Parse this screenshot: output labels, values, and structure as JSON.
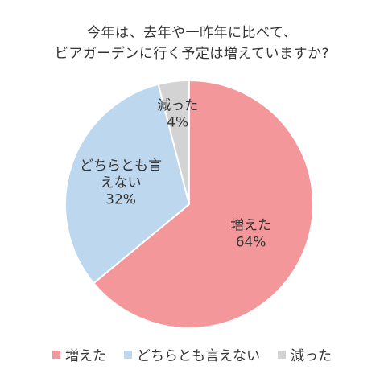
{
  "chart_data": {
    "type": "pie",
    "title": [
      "今年は、去年や一昨年に比べて、",
      "ビアガーデンに行く予定は増えていますか?"
    ],
    "categories": [
      "増えた",
      "どちらとも言えない",
      "減った"
    ],
    "values": [
      64,
      32,
      4
    ],
    "value_labels": [
      "64%",
      "32%",
      "4%"
    ],
    "slice_label_lines": [
      [
        "増えた",
        "64%"
      ],
      [
        "どちらとも言",
        "えない",
        "32%"
      ],
      [
        "減った",
        "4%"
      ]
    ],
    "colors": [
      "#F4979A",
      "#BDD7EE",
      "#D3D3D3"
    ],
    "legend_position": "bottom",
    "start_angle_deg": 0,
    "direction": "clockwise"
  }
}
